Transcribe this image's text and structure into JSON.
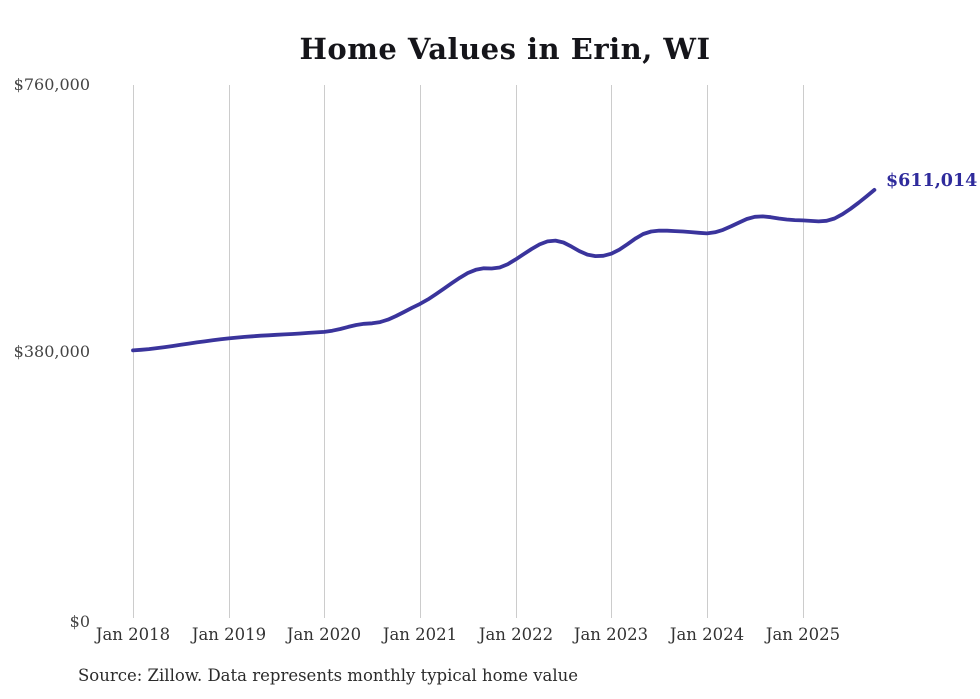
{
  "chart_data": {
    "type": "line",
    "title": "Home Values in Erin, WI",
    "series_name": "Monthly typical home value",
    "xlabel": "",
    "ylabel": "",
    "ylim": [
      0,
      760000
    ],
    "grid": "vertical-only",
    "legend": "none",
    "y_tick_labels": [
      "$760,000",
      "$380,000",
      "$0"
    ],
    "y_tick_values": [
      760000,
      380000,
      0
    ],
    "x_tick_labels": [
      "Jan 2018",
      "Jan 2019",
      "Jan 2020",
      "Jan 2021",
      "Jan 2022",
      "Jan 2023",
      "Jan 2024",
      "Jan 2025"
    ],
    "end_label": "$611,014",
    "end_value": 611014,
    "line_color": "#3a349c",
    "end_label_color": "#2f2b9c",
    "gridline_color": "#cccccc",
    "months": [
      "2018-01",
      "2018-02",
      "2018-03",
      "2018-04",
      "2018-05",
      "2018-06",
      "2018-07",
      "2018-08",
      "2018-09",
      "2018-10",
      "2018-11",
      "2018-12",
      "2019-01",
      "2019-02",
      "2019-03",
      "2019-04",
      "2019-05",
      "2019-06",
      "2019-07",
      "2019-08",
      "2019-09",
      "2019-10",
      "2019-11",
      "2019-12",
      "2020-01",
      "2020-02",
      "2020-03",
      "2020-04",
      "2020-05",
      "2020-06",
      "2020-07",
      "2020-08",
      "2020-09",
      "2020-10",
      "2020-11",
      "2020-12",
      "2021-01",
      "2021-02",
      "2021-03",
      "2021-04",
      "2021-05",
      "2021-06",
      "2021-07",
      "2021-08",
      "2021-09",
      "2021-10",
      "2021-11",
      "2021-12",
      "2022-01",
      "2022-02",
      "2022-03",
      "2022-04",
      "2022-05",
      "2022-06",
      "2022-07",
      "2022-08",
      "2022-09",
      "2022-10",
      "2022-11",
      "2022-12",
      "2023-01",
      "2023-02",
      "2023-03",
      "2023-04",
      "2023-05",
      "2023-06",
      "2023-07",
      "2023-08",
      "2023-09",
      "2023-10",
      "2023-11",
      "2023-12",
      "2024-01",
      "2024-02",
      "2024-03",
      "2024-04",
      "2024-05",
      "2024-06",
      "2024-07",
      "2024-08",
      "2024-09",
      "2024-10",
      "2024-11",
      "2024-12",
      "2025-01",
      "2025-02",
      "2025-03",
      "2025-04",
      "2025-05",
      "2025-06",
      "2025-07",
      "2025-08",
      "2025-09",
      "2025-10"
    ],
    "values": [
      383000,
      383800,
      384900,
      386200,
      387700,
      389300,
      391000,
      392700,
      394300,
      395800,
      397300,
      398700,
      400000,
      401100,
      402100,
      403000,
      403800,
      404500,
      405100,
      405700,
      406300,
      407000,
      407800,
      408500,
      409300,
      410900,
      413400,
      416300,
      419000,
      420700,
      421500,
      423200,
      426800,
      431800,
      437600,
      443500,
      449000,
      455500,
      462800,
      470600,
      478600,
      486300,
      492900,
      497500,
      499600,
      499300,
      500800,
      505500,
      512200,
      519600,
      527000,
      533600,
      537800,
      538900,
      536200,
      530400,
      524000,
      519100,
      517000,
      517400,
      520300,
      526100,
      533700,
      541700,
      548300,
      551900,
      553100,
      553000,
      552400,
      551900,
      551100,
      550100,
      549200,
      550700,
      554200,
      559200,
      564600,
      569600,
      572800,
      573400,
      572200,
      570300,
      568900,
      568100,
      567700,
      566900,
      566300,
      567100,
      570400,
      576500,
      584200,
      592600,
      601600,
      611014
    ]
  },
  "source_note": "Source: Zillow. Data represents monthly typical home value"
}
